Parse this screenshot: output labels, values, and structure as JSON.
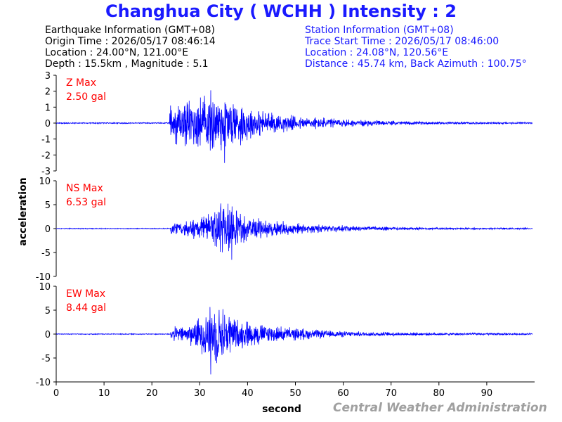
{
  "title": "Changhua City  ( WCHH )  Intensity : 2",
  "earthquake_info": {
    "header": "Earthquake Information  (GMT+08)",
    "origin_time": "Origin Time : 2026/05/17 08:46:14",
    "location": "Location : 24.00°N, 121.00°E",
    "depth_magnitude": "Depth : 15.5km , Magnitude : 5.1"
  },
  "station_info": {
    "header": "Station Information  (GMT+08)",
    "trace_start": "Trace Start Time : 2026/05/17 08:46:00",
    "location": "Location : 24.08°N, 120.56°E",
    "distance": "Distance : 45.74 km, Back Azimuth : 100.75°"
  },
  "credit": "Central Weather Administration",
  "colors": {
    "title": "#1a1aff",
    "trace": "#0000ff",
    "label": "#ff0000",
    "credit": "#a0a0a0"
  },
  "chart_data": {
    "type": "line",
    "xlabel": "second",
    "ylabel": "acceleration",
    "xlim": [
      0,
      100
    ],
    "xticks": [
      0,
      10,
      20,
      30,
      40,
      50,
      60,
      70,
      80,
      90
    ],
    "panels": [
      {
        "component": "Z Max",
        "max_label": "2.50 gal",
        "ylim": [
          -3,
          3
        ],
        "yticks": [
          -3,
          -2,
          -1,
          0,
          1,
          2,
          3
        ],
        "onset": 23.8,
        "envelope": [
          [
            0,
            0.04
          ],
          [
            23.7,
            0.04
          ],
          [
            23.8,
            1.5
          ],
          [
            26,
            1.6
          ],
          [
            30,
            2.0
          ],
          [
            33,
            2.3
          ],
          [
            35,
            2.3
          ],
          [
            38,
            1.6
          ],
          [
            42,
            1.0
          ],
          [
            46,
            0.7
          ],
          [
            50,
            0.5
          ],
          [
            56,
            0.4
          ],
          [
            62,
            0.25
          ],
          [
            70,
            0.15
          ],
          [
            80,
            0.1
          ],
          [
            90,
            0.07
          ],
          [
            100,
            0.06
          ]
        ],
        "peak": {
          "time": 35.2,
          "value": -2.5
        }
      },
      {
        "component": "NS Max",
        "max_label": "6.53 gal",
        "ylim": [
          -10,
          10
        ],
        "yticks": [
          -10,
          -5,
          0,
          5,
          10
        ],
        "onset": 24.0,
        "envelope": [
          [
            0,
            0.1
          ],
          [
            23.9,
            0.1
          ],
          [
            24.0,
            1.4
          ],
          [
            27,
            1.6
          ],
          [
            31,
            3.5
          ],
          [
            33,
            5.0
          ],
          [
            36,
            5.8
          ],
          [
            38,
            4.0
          ],
          [
            41,
            3.0
          ],
          [
            45,
            2.0
          ],
          [
            50,
            1.3
          ],
          [
            56,
            0.9
          ],
          [
            62,
            0.6
          ],
          [
            70,
            0.4
          ],
          [
            80,
            0.25
          ],
          [
            90,
            0.2
          ],
          [
            100,
            0.18
          ]
        ],
        "peak": {
          "time": 36.7,
          "value": -6.53
        }
      },
      {
        "component": "EW Max",
        "max_label": "8.44 gal",
        "ylim": [
          -10,
          10
        ],
        "yticks": [
          -10,
          -5,
          0,
          5,
          10
        ],
        "onset": 24.0,
        "envelope": [
          [
            0,
            0.1
          ],
          [
            23.9,
            0.1
          ],
          [
            24.0,
            1.6
          ],
          [
            27,
            2.0
          ],
          [
            30,
            4.0
          ],
          [
            32,
            6.8
          ],
          [
            35,
            6.5
          ],
          [
            38,
            3.5
          ],
          [
            41,
            3.0
          ],
          [
            45,
            2.0
          ],
          [
            50,
            1.5
          ],
          [
            56,
            0.9
          ],
          [
            62,
            0.6
          ],
          [
            70,
            0.45
          ],
          [
            80,
            0.3
          ],
          [
            90,
            0.25
          ],
          [
            100,
            0.2
          ]
        ],
        "peak": {
          "time": 32.3,
          "value": -8.44
        }
      }
    ]
  }
}
